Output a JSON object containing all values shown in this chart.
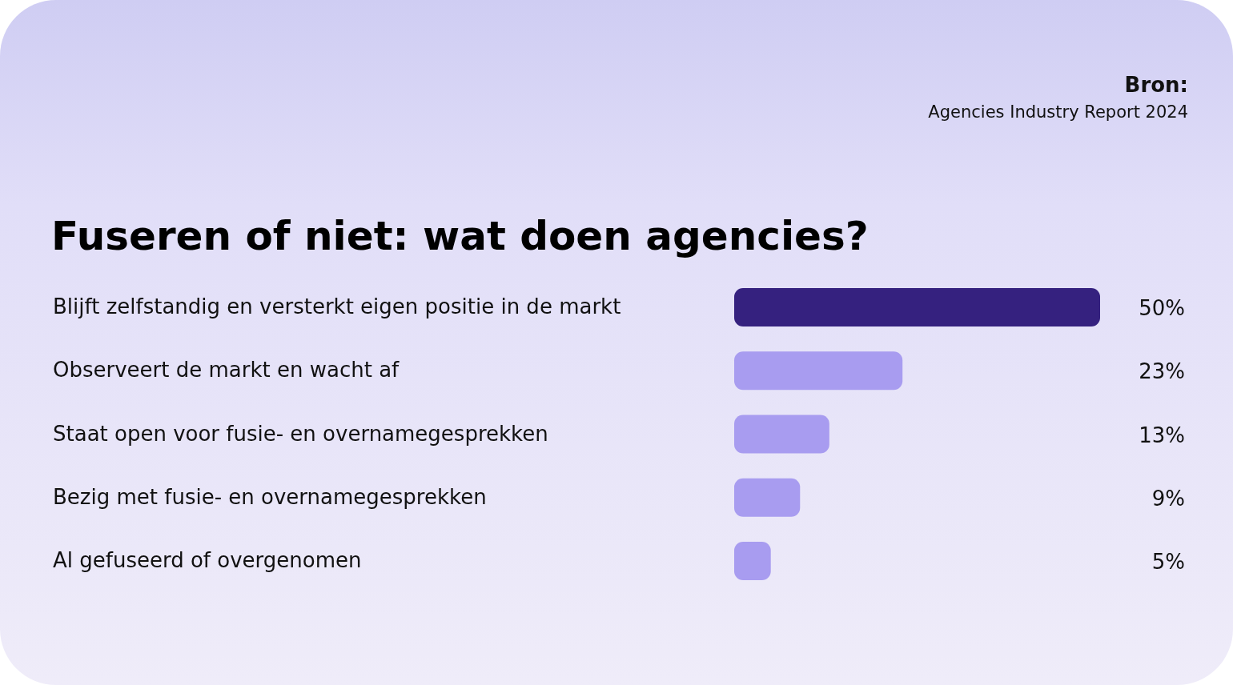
{
  "chart_data": {
    "type": "bar",
    "orientation": "horizontal",
    "title": "Fuseren of niet: wat doen agencies?",
    "categories": [
      "Blijft zelfstandig en versterkt eigen positie in de markt",
      "Observeert de markt en wacht af",
      "Staat open voor fusie- en overnamegesprekken",
      "Bezig met fusie- en overnamegesprekken",
      "Al gefuseerd of overgenomen"
    ],
    "values": [
      50,
      23,
      13,
      9,
      5
    ],
    "colors": [
      "#35217f",
      "#a89cf0",
      "#a89cf0",
      "#a89cf0",
      "#a89cf0"
    ],
    "value_labels": [
      "50%",
      "23%",
      "13%",
      "9%",
      "5%"
    ],
    "annotations": [
      "Bron:",
      "Agencies Industry Report 2024"
    ]
  }
}
